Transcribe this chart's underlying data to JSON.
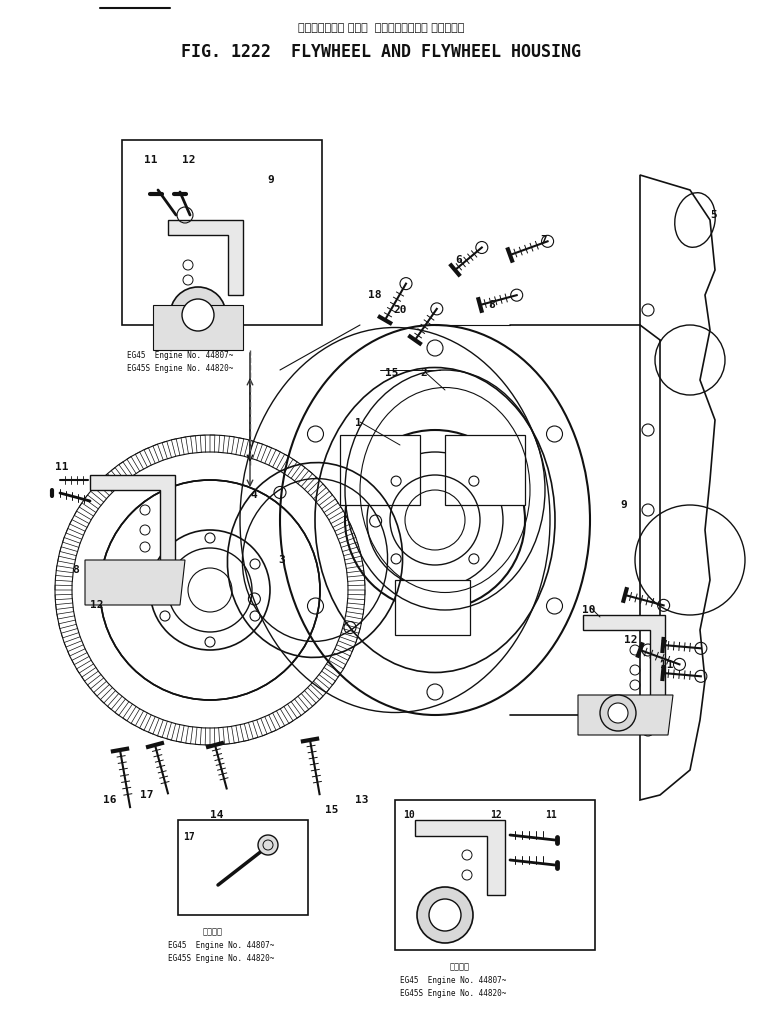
{
  "title_jp": "フライホイール および  フライホイールー ハウジング",
  "title_en": "FIG. 1222  FLYWHEEL AND FLYWHEEL HOUSING",
  "bg": "#ffffff",
  "lc": "#111111",
  "fig_w": 7.63,
  "fig_h": 10.17,
  "dpi": 100,
  "caption1": [
    "EG45  Engine No. 44807~",
    "EG45S Engine No. 44820~"
  ],
  "caption_jp": "適用番号"
}
